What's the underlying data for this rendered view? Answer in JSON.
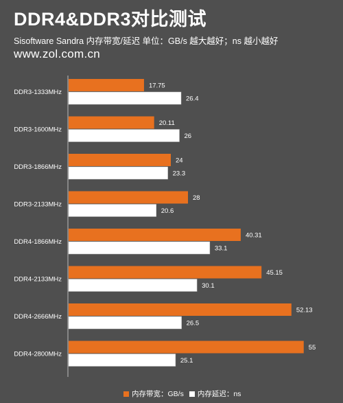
{
  "header": {
    "title": "DDR4&DDR3对比测试",
    "subtitle": "Sisoftware Sandra 内存带宽/延迟    单位：GB/s 越大越好；ns 越小越好",
    "website": "www.zol.com.cn"
  },
  "colors": {
    "background": "#4f4f4f",
    "bandwidth": "#e8711f",
    "latency": "#ffffff"
  },
  "legend": {
    "bandwidth_label": "内存带宽：GB/s",
    "latency_label": "内存延迟：ns"
  },
  "chart_data": {
    "type": "bar",
    "orientation": "horizontal",
    "categories": [
      "DDR3-1333MHz",
      "DDR3-1600MHz",
      "DDR3-1866MHz",
      "DDR3-2133MHz",
      "DDR4-1866MHz",
      "DDR4-2133MHz",
      "DDR4-2666MHz",
      "DDR4-2800MHz"
    ],
    "series": [
      {
        "name": "内存带宽：GB/s",
        "color": "#e8711f",
        "values": [
          17.75,
          20.11,
          24,
          28,
          40.31,
          45.15,
          52.13,
          55
        ]
      },
      {
        "name": "内存延迟：ns",
        "color": "#ffffff",
        "values": [
          26.4,
          26,
          23.3,
          20.6,
          33.1,
          30.1,
          26.5,
          25.1
        ]
      }
    ],
    "value_labels": [
      [
        "17.75",
        "20.11",
        "24",
        "28",
        "40.31",
        "45.15",
        "52.13",
        "55"
      ],
      [
        "26.4",
        "26",
        "23.3",
        "20.6",
        "33.1",
        "30.1",
        "26.5",
        "25.1"
      ]
    ],
    "xlim": [
      0,
      60
    ],
    "grid": false,
    "legend_position": "bottom"
  }
}
